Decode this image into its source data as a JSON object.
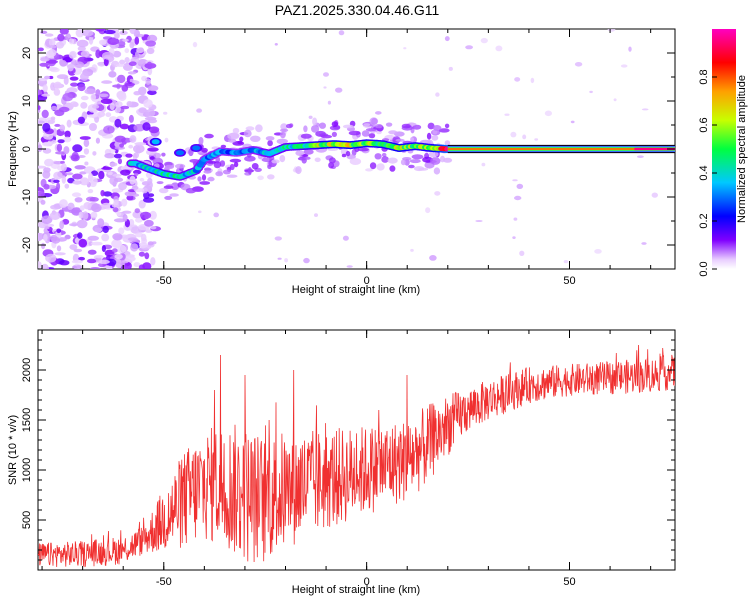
{
  "title": "PAZ1.2025.330.04.46.G11",
  "chart_data": [
    {
      "type": "heatmap",
      "title": "PAZ1.2025.330.04.46.G11",
      "xlabel": "Height of straight line (km)",
      "ylabel": "Frequency (Hz)",
      "xlim": [
        -81,
        76
      ],
      "ylim": [
        -25,
        25
      ],
      "xticks": [
        -50,
        0,
        50
      ],
      "yticks": [
        -20,
        -10,
        0,
        10,
        20
      ],
      "colorbar": {
        "label": "Normalized spectral amplitude",
        "range": [
          0.0,
          1.0
        ],
        "ticks": [
          0.0,
          0.2,
          0.4,
          0.6,
          0.8
        ],
        "tick_labels": [
          "0.0",
          "0.2",
          "0.4",
          "0.6",
          "0.8"
        ],
        "colors": [
          "#ffffff",
          "#d9a6ff",
          "#8000ff",
          "#0000ff",
          "#00c8ff",
          "#00ff40",
          "#c8ff00",
          "#ffa000",
          "#ff0000",
          "#ff00c0"
        ]
      },
      "noise_region_x": [
        -81,
        -52
      ],
      "ridge": [
        {
          "x": -57,
          "y": -3.0,
          "amp": 0.35
        },
        {
          "x": -54,
          "y": -4.0,
          "amp": 0.4
        },
        {
          "x": -50,
          "y": -5.2,
          "amp": 0.45
        },
        {
          "x": -46,
          "y": -5.8,
          "amp": 0.4
        },
        {
          "x": -42,
          "y": -4.5,
          "amp": 0.35
        },
        {
          "x": -40,
          "y": -2.2,
          "amp": 0.3
        },
        {
          "x": -36,
          "y": -0.5,
          "amp": 0.3
        },
        {
          "x": -32,
          "y": -0.8,
          "amp": 0.28
        },
        {
          "x": -28,
          "y": -0.2,
          "amp": 0.3
        },
        {
          "x": -24,
          "y": -1.0,
          "amp": 0.35
        },
        {
          "x": -20,
          "y": 0.4,
          "amp": 0.4
        },
        {
          "x": -16,
          "y": 0.6,
          "amp": 0.45
        },
        {
          "x": -12,
          "y": 0.8,
          "amp": 0.55
        },
        {
          "x": -8,
          "y": 1.0,
          "amp": 0.6
        },
        {
          "x": -4,
          "y": 0.8,
          "amp": 0.6
        },
        {
          "x": 0,
          "y": 1.2,
          "amp": 0.55
        },
        {
          "x": 4,
          "y": 1.0,
          "amp": 0.55
        },
        {
          "x": 8,
          "y": 0.2,
          "amp": 0.6
        },
        {
          "x": 12,
          "y": 0.6,
          "amp": 0.55
        },
        {
          "x": 16,
          "y": 0.2,
          "amp": 0.55
        },
        {
          "x": 20,
          "y": 0.0,
          "amp": 0.85
        },
        {
          "x": 40,
          "y": 0.0,
          "amp": 0.9
        },
        {
          "x": 60,
          "y": 0.0,
          "amp": 0.9
        },
        {
          "x": 76,
          "y": 0.0,
          "amp": 0.92
        }
      ],
      "upper_branch": [
        {
          "x": -52,
          "y": 1.5,
          "amp": 0.35
        },
        {
          "x": -46,
          "y": -0.8,
          "amp": 0.3
        },
        {
          "x": -42,
          "y": 0.2,
          "amp": 0.3
        }
      ]
    },
    {
      "type": "line",
      "xlabel": "Height of straight line (km)",
      "ylabel": "SNR (10 * v/v)",
      "xlim": [
        -81,
        76
      ],
      "ylim": [
        0,
        2400
      ],
      "xticks": [
        -50,
        0,
        50
      ],
      "yticks": [
        500,
        1000,
        1500,
        2000
      ],
      "series": [
        {
          "name": "SNR",
          "color": "#f03030",
          "trend": [
            {
              "x": -81,
              "y": 150
            },
            {
              "x": -70,
              "y": 160
            },
            {
              "x": -60,
              "y": 200
            },
            {
              "x": -55,
              "y": 300
            },
            {
              "x": -50,
              "y": 500
            },
            {
              "x": -45,
              "y": 700
            },
            {
              "x": -40,
              "y": 850
            },
            {
              "x": -35,
              "y": 850
            },
            {
              "x": -30,
              "y": 750
            },
            {
              "x": -25,
              "y": 700
            },
            {
              "x": -20,
              "y": 800
            },
            {
              "x": -15,
              "y": 850
            },
            {
              "x": -10,
              "y": 900
            },
            {
              "x": -5,
              "y": 950
            },
            {
              "x": 0,
              "y": 1000
            },
            {
              "x": 5,
              "y": 1050
            },
            {
              "x": 10,
              "y": 1100
            },
            {
              "x": 15,
              "y": 1250
            },
            {
              "x": 20,
              "y": 1450
            },
            {
              "x": 25,
              "y": 1600
            },
            {
              "x": 30,
              "y": 1700
            },
            {
              "x": 40,
              "y": 1850
            },
            {
              "x": 50,
              "y": 1900
            },
            {
              "x": 60,
              "y": 1920
            },
            {
              "x": 70,
              "y": 1950
            },
            {
              "x": 76,
              "y": 1980
            }
          ],
          "spread": [
            {
              "x": -81,
              "y": 120
            },
            {
              "x": -55,
              "y": 150
            },
            {
              "x": -45,
              "y": 500
            },
            {
              "x": -30,
              "y": 700
            },
            {
              "x": -15,
              "y": 550
            },
            {
              "x": 0,
              "y": 450
            },
            {
              "x": 15,
              "y": 400
            },
            {
              "x": 25,
              "y": 220
            },
            {
              "x": 50,
              "y": 160
            },
            {
              "x": 76,
              "y": 180
            }
          ],
          "peaks": [
            {
              "x": -36,
              "y": 2150
            },
            {
              "x": -30,
              "y": 1950
            },
            {
              "x": -37.5,
              "y": 1800
            },
            {
              "x": -18,
              "y": 2000
            },
            {
              "x": -24,
              "y": 1500
            },
            {
              "x": 10,
              "y": 1950
            },
            {
              "x": 3,
              "y": 1600
            },
            {
              "x": 67,
              "y": 2250
            },
            {
              "x": 73,
              "y": 2220
            }
          ]
        }
      ]
    }
  ]
}
